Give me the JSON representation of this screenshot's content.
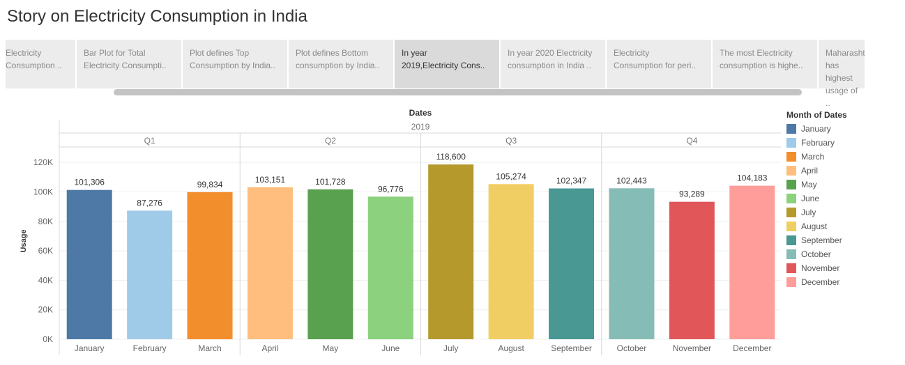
{
  "story": {
    "title": "Story on Electricity Consumption in India"
  },
  "storypoints": [
    {
      "label": "Electricity\nConsumption ..",
      "active": false
    },
    {
      "label": "Bar Plot for Total\nElectricity Consumpti..",
      "active": false
    },
    {
      "label": "Plot defines Top\nConsumption by India..",
      "active": false
    },
    {
      "label": "Plot defines Bottom\nconsumption by India..",
      "active": false
    },
    {
      "label": "In year\n2019,Electricity Cons..",
      "active": true
    },
    {
      "label": "In year 2020 Electricity\nconsumption in India ..",
      "active": false
    },
    {
      "label": "Electricity\nConsumption for peri..",
      "active": false
    },
    {
      "label": "The most Electricity\nconsumption is highe..",
      "active": false
    },
    {
      "label": "Maharashtra has\nhighest usage of ..",
      "active": false
    }
  ],
  "chart_data": {
    "type": "bar",
    "header": "Dates",
    "year": "2019",
    "quarters": [
      "Q1",
      "Q2",
      "Q3",
      "Q4"
    ],
    "categories": [
      "January",
      "February",
      "March",
      "April",
      "May",
      "June",
      "July",
      "August",
      "September",
      "October",
      "November",
      "December"
    ],
    "values": [
      101306,
      87276,
      99834,
      103151,
      101728,
      96776,
      118600,
      105274,
      102347,
      102443,
      93289,
      104183
    ],
    "value_labels": [
      "101,306",
      "87,276",
      "99,834",
      "103,151",
      "101,728",
      "96,776",
      "118,600",
      "105,274",
      "102,347",
      "102,443",
      "93,289",
      "104,183"
    ],
    "colors": [
      "#4e79a7",
      "#a0cbe8",
      "#f28e2b",
      "#ffbe7d",
      "#59a14f",
      "#8cd17d",
      "#b6992d",
      "#f1ce63",
      "#499894",
      "#86bcb6",
      "#e15759",
      "#ff9d9a"
    ],
    "ylabel": "Usage",
    "ylim": [
      0,
      130000
    ],
    "yticks": [
      0,
      20000,
      40000,
      60000,
      80000,
      100000,
      120000
    ],
    "ytick_labels": [
      "0K",
      "20K",
      "40K",
      "60K",
      "80K",
      "100K",
      "120K"
    ],
    "grid": true,
    "legend": {
      "title": "Month of Dates",
      "position": "right",
      "items": [
        "January",
        "February",
        "March",
        "April",
        "May",
        "June",
        "July",
        "August",
        "September",
        "October",
        "November",
        "December"
      ]
    }
  }
}
